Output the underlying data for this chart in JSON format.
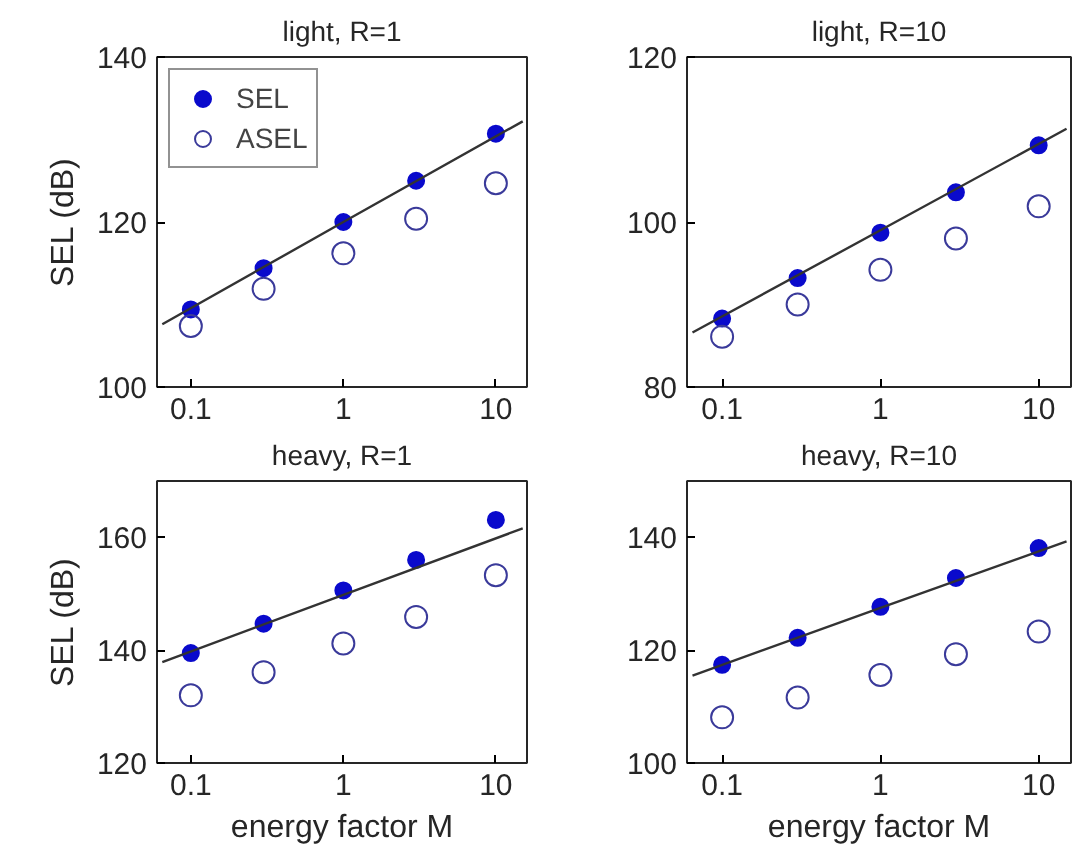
{
  "chart_data": [
    {
      "type": "scatter",
      "title": "light, R=1",
      "ylabel": "SEL (dB)",
      "x": [
        0.1,
        0.3,
        1,
        3,
        10
      ],
      "xlim": [
        0.06,
        16
      ],
      "xticks": [
        0.1,
        1,
        10
      ],
      "ylim": [
        100,
        140
      ],
      "yticks": [
        100,
        120,
        140
      ],
      "log": "x",
      "grid": false,
      "legend": "top left",
      "series": [
        {
          "name": "SEL",
          "color": "#0a0acc",
          "marker": "circle",
          "values": [
            109.4,
            114.4,
            120.0,
            125.0,
            130.7
          ]
        },
        {
          "name": "ASEL",
          "color": "#3a3a9a",
          "marker": "circle",
          "values": [
            107.4,
            111.9,
            116.2,
            120.4,
            124.7
          ]
        },
        {
          "type": "line",
          "color": "#333333",
          "marker": "none",
          "x": [
            0.065,
            1,
            15
          ],
          "values": [
            107.6,
            120.0,
            132.2
          ]
        }
      ]
    },
    {
      "type": "scatter",
      "title": "light, R=10",
      "x": [
        0.1,
        0.3,
        1,
        3,
        10
      ],
      "xlim": [
        0.06,
        16
      ],
      "xticks": [
        0.1,
        1,
        10
      ],
      "ylim": [
        80,
        120
      ],
      "yticks": [
        80,
        100,
        120
      ],
      "log": "x",
      "grid": false,
      "legend": false,
      "series": [
        {
          "color": "#0a0acc",
          "marker": "circle",
          "values": [
            88.3,
            93.2,
            98.7,
            103.6,
            109.3
          ]
        },
        {
          "color": "#3a3a9a",
          "marker": "circle",
          "values": [
            86.1,
            90.0,
            94.2,
            98.0,
            101.9
          ]
        },
        {
          "type": "line",
          "color": "#333333",
          "marker": "none",
          "x": [
            0.065,
            1,
            15
          ],
          "values": [
            86.6,
            99.0,
            111.3
          ]
        }
      ]
    },
    {
      "type": "scatter",
      "title": "heavy, R=1",
      "xlabel": "energy factor M",
      "ylabel": "SEL (dB)",
      "x": [
        0.1,
        0.3,
        1,
        3,
        10
      ],
      "xlim": [
        0.06,
        16
      ],
      "xticks": [
        0.1,
        1,
        10
      ],
      "ylim": [
        120,
        170
      ],
      "yticks": [
        120,
        140,
        160
      ],
      "log": "x",
      "grid": false,
      "legend": false,
      "series": [
        {
          "color": "#0a0acc",
          "marker": "circle",
          "values": [
            139.5,
            144.7,
            150.6,
            156.0,
            163.1
          ]
        },
        {
          "color": "#3a3a9a",
          "marker": "circle",
          "values": [
            132.0,
            136.1,
            141.2,
            145.9,
            153.3
          ]
        },
        {
          "type": "line",
          "color": "#333333",
          "marker": "none",
          "x": [
            0.065,
            1,
            15
          ],
          "values": [
            137.9,
            149.8,
            161.6
          ]
        }
      ]
    },
    {
      "type": "scatter",
      "title": "heavy, R=10",
      "xlabel": "energy factor M",
      "x": [
        0.1,
        0.3,
        1,
        3,
        10
      ],
      "xlim": [
        0.06,
        16
      ],
      "xticks": [
        0.1,
        1,
        10
      ],
      "ylim": [
        100,
        150
      ],
      "yticks": [
        100,
        120,
        140
      ],
      "log": "x",
      "grid": false,
      "legend": false,
      "series": [
        {
          "color": "#0a0acc",
          "marker": "circle",
          "values": [
            117.4,
            122.2,
            127.7,
            132.8,
            138.1
          ]
        },
        {
          "color": "#3a3a9a",
          "marker": "circle",
          "values": [
            108.1,
            111.6,
            115.6,
            119.3,
            123.3
          ]
        },
        {
          "type": "line",
          "color": "#333333",
          "marker": "none",
          "x": [
            0.065,
            1,
            15
          ],
          "values": [
            115.5,
            127.5,
            139.3
          ]
        }
      ]
    }
  ]
}
